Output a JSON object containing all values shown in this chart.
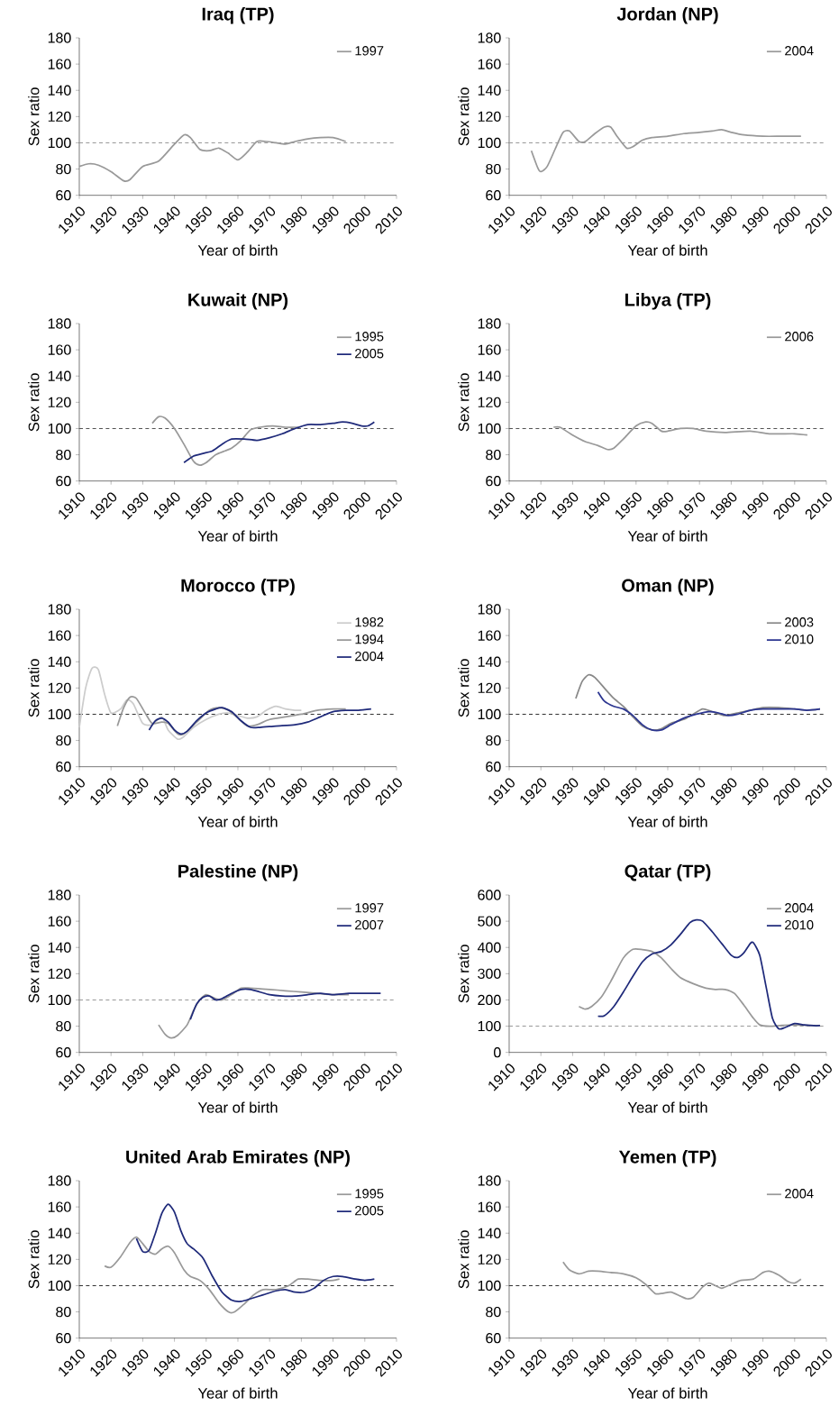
{
  "chart_data": [
    {
      "type": "line",
      "title": "Iraq (TP)",
      "xlabel": "Year of birth",
      "ylabel": "Sex ratio",
      "xlim": [
        1910,
        2010
      ],
      "xticks": [
        1910,
        1920,
        1930,
        1940,
        1950,
        1960,
        1970,
        1980,
        1990,
        2000,
        2010
      ],
      "ylim": [
        60,
        180
      ],
      "yticks": [
        60,
        80,
        100,
        120,
        140,
        160,
        180
      ],
      "legend": "top right",
      "ref_lines": [
        {
          "axis": "y",
          "value": 100,
          "color": "#999999",
          "line_style": "dashed"
        }
      ],
      "series": [
        {
          "name": "1997",
          "color": "#999999",
          "x": [
            1910,
            1913,
            1916,
            1920,
            1924,
            1926,
            1930,
            1935,
            1940,
            1943,
            1945,
            1948,
            1951,
            1954,
            1957,
            1960,
            1963,
            1966,
            1969,
            1972,
            1975,
            1978,
            1982,
            1986,
            1990,
            1994
          ],
          "values": [
            82,
            84,
            83,
            78,
            71,
            72,
            82,
            86,
            99,
            106,
            104,
            95,
            94,
            96,
            92,
            87,
            93,
            101,
            101,
            100,
            99,
            101,
            103,
            104,
            104,
            101
          ]
        }
      ]
    },
    {
      "type": "line",
      "title": "Jordan (NP)",
      "xlabel": "Year of birth",
      "ylabel": "Sex ratio",
      "xlim": [
        1910,
        2010
      ],
      "xticks": [
        1910,
        1920,
        1930,
        1940,
        1950,
        1960,
        1970,
        1980,
        1990,
        2000,
        2010
      ],
      "ylim": [
        60,
        180
      ],
      "yticks": [
        60,
        80,
        100,
        120,
        140,
        160,
        180
      ],
      "legend": "top right",
      "ref_lines": [
        {
          "axis": "y",
          "value": 100,
          "color": "#999999",
          "line_style": "dashed"
        }
      ],
      "series": [
        {
          "name": "2004",
          "color": "#999999",
          "x": [
            1917,
            1919,
            1920,
            1922,
            1925,
            1927,
            1929,
            1932,
            1934,
            1937,
            1940,
            1942,
            1944,
            1947,
            1949,
            1952,
            1955,
            1960,
            1965,
            1970,
            1974,
            1977,
            1980,
            1984,
            1990,
            1996,
            2002
          ],
          "values": [
            94,
            81,
            78,
            82,
            98,
            108,
            109,
            101,
            101,
            107,
            112,
            112,
            105,
            96,
            97,
            102,
            104,
            105,
            107,
            108,
            109,
            110,
            108,
            106,
            105,
            105,
            105
          ]
        }
      ]
    },
    {
      "type": "line",
      "title": "Kuwait (NP)",
      "xlabel": "Year of birth",
      "ylabel": "Sex ratio",
      "xlim": [
        1910,
        2010
      ],
      "xticks": [
        1910,
        1920,
        1930,
        1940,
        1950,
        1960,
        1970,
        1980,
        1990,
        2000,
        2010
      ],
      "ylim": [
        60,
        180
      ],
      "yticks": [
        60,
        80,
        100,
        120,
        140,
        160,
        180
      ],
      "legend": "top right",
      "ref_lines": [
        {
          "axis": "y",
          "value": 100,
          "color": "#555555",
          "line_style": "dashed"
        }
      ],
      "series": [
        {
          "name": "1995",
          "color": "#999999",
          "x": [
            1933,
            1935,
            1937,
            1940,
            1943,
            1946,
            1948,
            1950,
            1953,
            1956,
            1958,
            1961,
            1964,
            1967,
            1971,
            1975,
            1979
          ],
          "values": [
            104,
            109,
            108,
            100,
            88,
            75,
            72,
            74,
            80,
            83,
            85,
            91,
            99,
            101,
            102,
            101,
            101
          ]
        },
        {
          "name": "2005",
          "color": "#1f2a7a",
          "x": [
            1943,
            1946,
            1949,
            1952,
            1955,
            1958,
            1962,
            1966,
            1970,
            1974,
            1978,
            1982,
            1986,
            1990,
            1993,
            1996,
            1999,
            2001,
            2003
          ],
          "values": [
            74,
            79,
            81,
            83,
            88,
            92,
            92,
            91,
            93,
            96,
            100,
            103,
            103,
            104,
            105,
            104,
            102,
            102,
            105
          ]
        }
      ]
    },
    {
      "type": "line",
      "title": "Libya (TP)",
      "xlabel": "Year of birth",
      "ylabel": "Sex ratio",
      "xlim": [
        1910,
        2010
      ],
      "xticks": [
        1910,
        1920,
        1930,
        1940,
        1950,
        1960,
        1970,
        1980,
        1990,
        2000,
        2010
      ],
      "ylim": [
        60,
        180
      ],
      "yticks": [
        60,
        80,
        100,
        120,
        140,
        160,
        180
      ],
      "legend": "top right",
      "ref_lines": [
        {
          "axis": "y",
          "value": 100,
          "color": "#555555",
          "line_style": "dashed"
        }
      ],
      "series": [
        {
          "name": "2006",
          "color": "#999999",
          "x": [
            1924,
            1926,
            1930,
            1934,
            1938,
            1941,
            1943,
            1946,
            1950,
            1953,
            1955,
            1958,
            1960,
            1964,
            1968,
            1972,
            1978,
            1986,
            1992,
            2000,
            2004
          ],
          "values": [
            101,
            101,
            95,
            90,
            87,
            84,
            85,
            92,
            102,
            105,
            104,
            98,
            98,
            100,
            100,
            98,
            97,
            98,
            96,
            96,
            95
          ]
        }
      ]
    },
    {
      "type": "line",
      "title": "Morocco (TP)",
      "xlabel": "Year of birth",
      "ylabel": "Sex ratio",
      "xlim": [
        1910,
        2010
      ],
      "xticks": [
        1910,
        1920,
        1930,
        1940,
        1950,
        1960,
        1970,
        1980,
        1990,
        2000,
        2010
      ],
      "ylim": [
        60,
        180
      ],
      "yticks": [
        60,
        80,
        100,
        120,
        140,
        160,
        180
      ],
      "legend": "top right",
      "ref_lines": [
        {
          "axis": "y",
          "value": 100,
          "color": "#333333",
          "line_style": "dashed"
        }
      ],
      "series": [
        {
          "name": "1982",
          "color": "#cccccc",
          "x": [
            1910,
            1912,
            1914,
            1916,
            1918,
            1920,
            1923,
            1925,
            1927,
            1930,
            1933,
            1936,
            1938,
            1941,
            1943,
            1946,
            1950,
            1954,
            1957,
            1960,
            1963,
            1966,
            1969,
            1972,
            1975,
            1978,
            1980
          ],
          "values": [
            90,
            120,
            135,
            134,
            115,
            101,
            104,
            111,
            108,
            93,
            92,
            98,
            88,
            81,
            83,
            90,
            96,
            100,
            101,
            99,
            97,
            98,
            103,
            106,
            104,
            103,
            103
          ]
        },
        {
          "name": "1994",
          "color": "#999999",
          "x": [
            1922,
            1924,
            1926,
            1928,
            1931,
            1933,
            1936,
            1938,
            1941,
            1943,
            1947,
            1951,
            1954,
            1957,
            1960,
            1963,
            1966,
            1970,
            1975,
            1980,
            1985,
            1990,
            1994
          ],
          "values": [
            91,
            105,
            113,
            112,
            100,
            93,
            94,
            93,
            85,
            85,
            94,
            103,
            105,
            103,
            97,
            91,
            92,
            96,
            98,
            100,
            103,
            104,
            104
          ]
        },
        {
          "name": "2004",
          "color": "#1f2a7a",
          "x": [
            1932,
            1934,
            1936,
            1938,
            1940,
            1942,
            1944,
            1947,
            1950,
            1953,
            1955,
            1958,
            1961,
            1964,
            1967,
            1972,
            1978,
            1982,
            1986,
            1990,
            1994,
            1998,
            2002
          ],
          "values": [
            88,
            95,
            97,
            94,
            88,
            85,
            87,
            95,
            101,
            104,
            105,
            102,
            95,
            90,
            90,
            91,
            92,
            94,
            98,
            102,
            103,
            103,
            104
          ]
        }
      ]
    },
    {
      "type": "line",
      "title": "Oman (NP)",
      "xlabel": "Year of birth",
      "ylabel": "Sex ratio",
      "xlim": [
        1910,
        2010
      ],
      "xticks": [
        1910,
        1920,
        1930,
        1940,
        1950,
        1960,
        1970,
        1980,
        1990,
        2000,
        2010
      ],
      "ylim": [
        60,
        180
      ],
      "yticks": [
        60,
        80,
        100,
        120,
        140,
        160,
        180
      ],
      "legend": "top right",
      "ref_lines": [
        {
          "axis": "y",
          "value": 100,
          "color": "#333333",
          "line_style": "dashed"
        }
      ],
      "series": [
        {
          "name": "2003",
          "color": "#888888",
          "x": [
            1931,
            1933,
            1935,
            1937,
            1940,
            1943,
            1946,
            1949,
            1952,
            1955,
            1958,
            1961,
            1965,
            1968,
            1971,
            1974,
            1978,
            1982,
            1986,
            1990,
            1995,
            2000,
            2004,
            2008
          ],
          "values": [
            112,
            125,
            130,
            128,
            120,
            112,
            106,
            98,
            91,
            88,
            89,
            93,
            96,
            100,
            104,
            102,
            99,
            101,
            103,
            105,
            105,
            104,
            103,
            104
          ]
        },
        {
          "name": "2010",
          "color": "#2b3590",
          "x": [
            1938,
            1940,
            1943,
            1946,
            1949,
            1952,
            1955,
            1958,
            1961,
            1965,
            1969,
            1973,
            1976,
            1979,
            1982,
            1986,
            1990,
            1995,
            2000,
            2004,
            2008
          ],
          "values": [
            117,
            110,
            106,
            104,
            99,
            92,
            88,
            88,
            92,
            97,
            100,
            102,
            101,
            99,
            100,
            103,
            104,
            104,
            104,
            103,
            104
          ]
        }
      ]
    },
    {
      "type": "line",
      "title": "Palestine (NP)",
      "xlabel": "Year of birth",
      "ylabel": "Sex ratio",
      "xlim": [
        1910,
        2010
      ],
      "xticks": [
        1910,
        1920,
        1930,
        1940,
        1950,
        1960,
        1970,
        1980,
        1990,
        2000,
        2010
      ],
      "ylim": [
        60,
        180
      ],
      "yticks": [
        60,
        80,
        100,
        120,
        140,
        160,
        180
      ],
      "legend": "top right",
      "ref_lines": [
        {
          "axis": "y",
          "value": 100,
          "color": "#999999",
          "line_style": "dashed"
        }
      ],
      "series": [
        {
          "name": "1997",
          "color": "#999999",
          "x": [
            1935,
            1937,
            1939,
            1941,
            1944,
            1946,
            1948,
            1950,
            1953,
            1955,
            1958,
            1961,
            1964,
            1970,
            1975,
            1980,
            1985,
            1990,
            1995
          ],
          "values": [
            81,
            74,
            71,
            73,
            81,
            92,
            100,
            104,
            101,
            100,
            104,
            109,
            109,
            108,
            107,
            106,
            105,
            104,
            104
          ]
        },
        {
          "name": "2007",
          "color": "#1f2a7a",
          "x": [
            1945,
            1947,
            1949,
            1951,
            1953,
            1955,
            1958,
            1961,
            1964,
            1967,
            1970,
            1974,
            1978,
            1982,
            1986,
            1990,
            1995,
            2000,
            2005
          ],
          "values": [
            85,
            97,
            102,
            103,
            100,
            101,
            105,
            108,
            108,
            106,
            104,
            103,
            103,
            104,
            105,
            104,
            105,
            105,
            105
          ]
        }
      ]
    },
    {
      "type": "line",
      "title": "Qatar (TP)",
      "xlabel": "Year of birth",
      "ylabel": "Sex ratio",
      "xlim": [
        1910,
        2010
      ],
      "xticks": [
        1910,
        1920,
        1930,
        1940,
        1950,
        1960,
        1970,
        1980,
        1990,
        2000,
        2010
      ],
      "ylim": [
        0,
        600
      ],
      "yticks": [
        0,
        100,
        200,
        300,
        400,
        500,
        600
      ],
      "legend": "top right",
      "ref_lines": [
        {
          "axis": "y",
          "value": 100,
          "color": "#999999",
          "line_style": "dashed"
        }
      ],
      "series": [
        {
          "name": "2004",
          "color": "#999999",
          "x": [
            1932,
            1934,
            1936,
            1939,
            1942,
            1946,
            1949,
            1952,
            1955,
            1958,
            1961,
            1964,
            1968,
            1972,
            1975,
            1978,
            1981,
            1984,
            1987,
            1989,
            1992,
            1996,
            2000,
            2004,
            2008
          ],
          "values": [
            175,
            165,
            175,
            210,
            270,
            360,
            393,
            392,
            385,
            360,
            320,
            285,
            262,
            245,
            240,
            240,
            225,
            180,
            130,
            105,
            100,
            103,
            105,
            103,
            102
          ]
        },
        {
          "name": "2010",
          "color": "#1f2a7a",
          "x": [
            1938,
            1940,
            1943,
            1946,
            1949,
            1952,
            1955,
            1958,
            1961,
            1964,
            1967,
            1969,
            1971,
            1974,
            1977,
            1980,
            1982,
            1984,
            1986,
            1987,
            1989,
            1991,
            1993,
            1995,
            1997,
            2000,
            2003,
            2006,
            2008
          ],
          "values": [
            138,
            140,
            175,
            230,
            290,
            345,
            375,
            385,
            410,
            450,
            495,
            505,
            500,
            460,
            415,
            370,
            362,
            380,
            415,
            418,
            370,
            250,
            130,
            90,
            95,
            110,
            105,
            102,
            102
          ]
        }
      ]
    },
    {
      "type": "line",
      "title": "United Arab Emirates (NP)",
      "xlabel": "Year of birth",
      "ylabel": "Sex ratio",
      "xlim": [
        1910,
        2010
      ],
      "xticks": [
        1910,
        1920,
        1930,
        1940,
        1950,
        1960,
        1970,
        1980,
        1990,
        2000,
        2010
      ],
      "ylim": [
        60,
        180
      ],
      "yticks": [
        60,
        80,
        100,
        120,
        140,
        160,
        180
      ],
      "legend": "top right",
      "ref_lines": [
        {
          "axis": "y",
          "value": 100,
          "color": "#333333",
          "line_style": "dashed"
        }
      ],
      "series": [
        {
          "name": "1995",
          "color": "#999999",
          "x": [
            1918,
            1920,
            1923,
            1926,
            1928,
            1930,
            1932,
            1934,
            1936,
            1938,
            1940,
            1943,
            1945,
            1948,
            1951,
            1954,
            1957,
            1959,
            1962,
            1965,
            1968,
            1972,
            1976,
            1979,
            1982,
            1986,
            1990,
            1992
          ],
          "values": [
            115,
            114,
            122,
            133,
            137,
            132,
            126,
            124,
            128,
            130,
            125,
            112,
            107,
            104,
            97,
            87,
            80,
            80,
            86,
            93,
            97,
            97,
            100,
            105,
            105,
            104,
            104,
            105
          ]
        },
        {
          "name": "2005",
          "color": "#1f2a7a",
          "x": [
            1928,
            1930,
            1932,
            1934,
            1936,
            1938,
            1940,
            1942,
            1944,
            1946,
            1949,
            1952,
            1955,
            1958,
            1961,
            1964,
            1968,
            1972,
            1975,
            1978,
            1981,
            1984,
            1987,
            1990,
            1993,
            1997,
            2000,
            2003
          ],
          "values": [
            136,
            126,
            127,
            140,
            155,
            162,
            156,
            142,
            132,
            128,
            121,
            107,
            95,
            89,
            88,
            90,
            93,
            96,
            97,
            95,
            95,
            98,
            104,
            107,
            107,
            105,
            104,
            105
          ]
        }
      ]
    },
    {
      "type": "line",
      "title": "Yemen (TP)",
      "xlabel": "Year of birth",
      "ylabel": "Sex ratio",
      "xlim": [
        1910,
        2010
      ],
      "xticks": [
        1910,
        1920,
        1930,
        1940,
        1950,
        1960,
        1970,
        1980,
        1990,
        2000,
        2010
      ],
      "ylim": [
        60,
        180
      ],
      "yticks": [
        60,
        80,
        100,
        120,
        140,
        160,
        180
      ],
      "legend": "top right",
      "ref_lines": [
        {
          "axis": "y",
          "value": 100,
          "color": "#333333",
          "line_style": "dashed"
        }
      ],
      "series": [
        {
          "name": "2004",
          "color": "#999999",
          "x": [
            1927,
            1929,
            1932,
            1935,
            1938,
            1942,
            1946,
            1950,
            1953,
            1956,
            1958,
            1961,
            1964,
            1966,
            1968,
            1971,
            1973,
            1975,
            1977,
            1980,
            1983,
            1987,
            1990,
            1992,
            1995,
            1998,
            2000,
            2002
          ],
          "values": [
            118,
            112,
            109,
            111,
            111,
            110,
            109,
            106,
            101,
            94,
            94,
            95,
            92,
            90,
            91,
            99,
            102,
            100,
            98,
            101,
            104,
            105,
            110,
            111,
            108,
            103,
            102,
            105
          ]
        }
      ]
    }
  ]
}
